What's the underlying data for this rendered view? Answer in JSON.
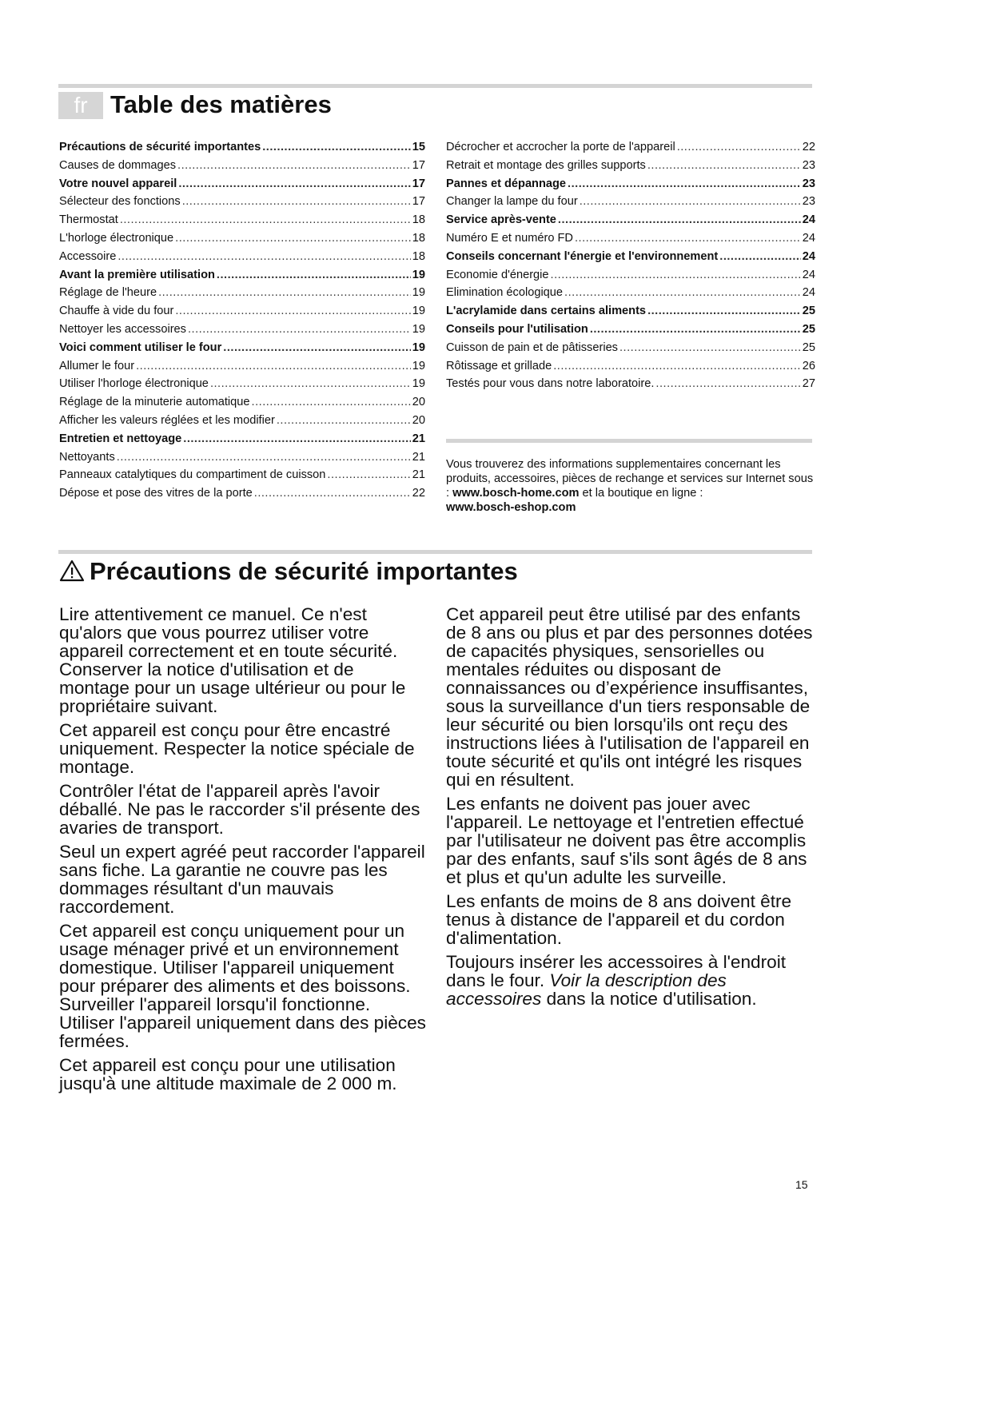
{
  "lang_tag": "fr",
  "toc_title": "Table des matières",
  "toc_left": [
    {
      "t": "Précautions de sécurité importantes",
      "p": "15",
      "bold": true
    },
    {
      "t": "Causes de dommages",
      "p": "17"
    },
    {
      "t": "Votre nouvel appareil",
      "p": "17",
      "bold": true
    },
    {
      "t": "Sélecteur des fonctions",
      "p": "17"
    },
    {
      "t": "Thermostat",
      "p": "18"
    },
    {
      "t": "L'horloge électronique",
      "p": "18"
    },
    {
      "t": "Accessoire",
      "p": "18"
    },
    {
      "t": "Avant la première utilisation",
      "p": "19",
      "bold": true
    },
    {
      "t": "Réglage de l'heure",
      "p": "19"
    },
    {
      "t": "Chauffe à vide du four",
      "p": "19"
    },
    {
      "t": "Nettoyer les accessoires",
      "p": "19"
    },
    {
      "t": "Voici comment utiliser le four",
      "p": "19",
      "bold": true
    },
    {
      "t": "Allumer le four",
      "p": "19"
    },
    {
      "t": "Utiliser l'horloge électronique",
      "p": "19"
    },
    {
      "t": "Réglage de la minuterie automatique",
      "p": "20"
    },
    {
      "t": "Afficher les valeurs réglées et les modifier",
      "p": "20"
    },
    {
      "t": "Entretien et nettoyage",
      "p": "21",
      "bold": true
    },
    {
      "t": "Nettoyants",
      "p": "21"
    },
    {
      "t": "Panneaux catalytiques du compartiment de cuisson",
      "p": "21"
    },
    {
      "t": "Dépose et pose des vitres de la porte",
      "p": "22"
    }
  ],
  "toc_right": [
    {
      "t": "Décrocher et accrocher la porte de l'appareil",
      "p": "22"
    },
    {
      "t": "Retrait et montage des grilles supports",
      "p": "23"
    },
    {
      "t": "Pannes et dépannage",
      "p": "23",
      "bold": true
    },
    {
      "t": "Changer la lampe du four",
      "p": "23"
    },
    {
      "t": "Service après-vente",
      "p": "24",
      "bold": true
    },
    {
      "t": "Numéro E et numéro FD",
      "p": "24"
    },
    {
      "t": "Conseils concernant l'énergie et l'environnement",
      "p": "24",
      "bold": true
    },
    {
      "t": "Economie d'énergie",
      "p": "24"
    },
    {
      "t": "Elimination écologique",
      "p": "24"
    },
    {
      "t": "L'acrylamide dans certains aliments",
      "p": "25",
      "bold": true
    },
    {
      "t": "Conseils pour l'utilisation",
      "p": "25",
      "bold": true
    },
    {
      "t": "Cuisson de pain et de pâtisseries",
      "p": "25"
    },
    {
      "t": "Rôtissage et grillade",
      "p": "26"
    },
    {
      "t": "Testés pour vous dans notre laboratoire.",
      "p": "27"
    }
  ],
  "info": {
    "text1": "Vous trouverez des informations supplementaires concernant les produits, accessoires, pièces de rechange et services sur Internet sous : ",
    "link1": "www.bosch-home.com",
    "text2": " et la boutique en ligne : ",
    "link2": "www.bosch-eshop.com"
  },
  "safety_title": "Précautions de sécurité importantes",
  "warning_icon": "warning-triangle",
  "left_paras": [
    "Lire attentivement ce manuel. Ce n'est qu'alors que vous pourrez utiliser votre appareil correctement et en toute sécurité. Conserver la notice d'utilisation et de montage pour un usage ultérieur ou pour le propriétaire suivant.",
    "Cet appareil est conçu pour être encastré uniquement. Respecter la notice spéciale de montage.",
    "Contrôler l'état de l'appareil après l'avoir déballé. Ne pas le raccorder s'il présente des avaries de transport.",
    "Seul un expert agréé peut raccorder l'appareil sans fiche. La garantie ne couvre pas les dommages résultant d'un mauvais raccordement.",
    "Cet appareil est conçu uniquement pour un usage ménager privé et un environnement domestique. Utiliser l'appareil uniquement pour préparer des aliments et des boissons. Surveiller l'appareil lorsqu'il fonctionne. Utiliser l'appareil uniquement dans des pièces fermées.",
    "Cet appareil est conçu pour une utilisation jusqu'à une altitude maximale de 2 000 m."
  ],
  "right_paras": [
    "Cet appareil peut être utilisé par des enfants de 8 ans ou plus et par des personnes dotées de capacités physiques, sensorielles ou mentales réduites ou disposant de connaissances ou d’expérience insuffisantes, sous la surveillance d'un tiers responsable de leur sécurité ou bien lorsqu'ils ont reçu des instructions liées à l'utilisation de l'appareil en toute sécurité et qu'ils ont intégré les risques qui en résultent.",
    "Les enfants ne doivent pas jouer avec l'appareil. Le nettoyage et l'entretien effectué par l'utilisateur ne doivent pas être accomplis par des enfants, sauf s'ils sont âgés de 8 ans et plus et qu'un adulte les surveille.",
    "Les enfants de moins de 8 ans doivent être tenus à distance de l'appareil et du cordon d'alimentation."
  ],
  "last_para": {
    "a": "Toujours insérer les accessoires à l'endroit dans le four. ",
    "i": "Voir la description des accessoires",
    "b": " dans la notice d'utilisation."
  },
  "page_number": "15"
}
